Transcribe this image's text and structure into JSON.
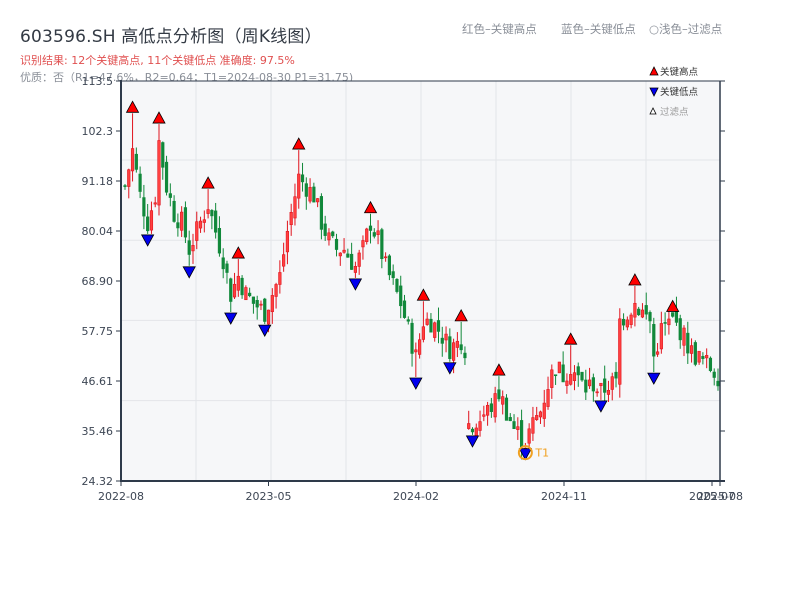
{
  "header": {
    "title": "603596.SH 高低点分析图（周K线图）",
    "result_line": "识别结果: 12个关键高点, 11个关键低点  准确度: 97.5%",
    "quality_line": "优质：否（R1=47.6%，R2=0.64；T1=2024-08-30 P1=31.75)"
  },
  "top_legend": {
    "red": "红色–关键高点",
    "blue": "蓝色–关键低点",
    "light": "○浅色–过滤点"
  },
  "chart_legend": {
    "high": "关键高点",
    "low": "关键低点",
    "filtered": "过滤点"
  },
  "colors": {
    "up": "#e0141e",
    "down": "#11883a",
    "high_marker": "#ff0000",
    "low_marker": "#0000ee",
    "t1_ring": "#f0a020",
    "axis": "#2e3a4a",
    "grid": "#e3e5e9",
    "plot_bg": "#f6f7f9"
  },
  "chart_data": {
    "type": "candlestick",
    "title": "603596.SH 高低点分析图（周K线图）",
    "xlabel": "",
    "ylabel": "",
    "ylim": [
      24.32,
      113.5
    ],
    "y_ticks": [
      "113.5",
      "102.3",
      "91.18",
      "80.04",
      "68.90",
      "57.75",
      "46.61",
      "35.46",
      "24.32"
    ],
    "x_ticks": [
      "2022-08",
      "2023-05",
      "2024-02",
      "2024-11",
      "2025-07",
      "2025-08"
    ],
    "grid": true,
    "legend_position": "upper right",
    "key_highs": [
      {
        "idx": 2,
        "price": 106.3
      },
      {
        "idx": 9,
        "price": 103.9
      },
      {
        "idx": 22,
        "price": 89.4
      },
      {
        "idx": 30,
        "price": 73.8
      },
      {
        "idx": 46,
        "price": 98.1
      },
      {
        "idx": 65,
        "price": 83.9
      },
      {
        "idx": 79,
        "price": 64.4
      },
      {
        "idx": 89,
        "price": 59.8
      },
      {
        "idx": 99,
        "price": 47.7
      },
      {
        "idx": 118,
        "price": 54.6
      },
      {
        "idx": 135,
        "price": 67.8
      },
      {
        "idx": 145,
        "price": 61.9
      }
    ],
    "key_lows": [
      {
        "idx": 6,
        "price": 79.4
      },
      {
        "idx": 17,
        "price": 72.3
      },
      {
        "idx": 28,
        "price": 62.0
      },
      {
        "idx": 37,
        "price": 59.3
      },
      {
        "idx": 61,
        "price": 69.6
      },
      {
        "idx": 77,
        "price": 47.5
      },
      {
        "idx": 86,
        "price": 50.9
      },
      {
        "idx": 92,
        "price": 34.6
      },
      {
        "idx": 106,
        "price": 31.75
      },
      {
        "idx": 126,
        "price": 42.4
      },
      {
        "idx": 140,
        "price": 48.6
      }
    ],
    "t1": {
      "idx": 106,
      "price": 31.75,
      "label": "T1",
      "date": "2024-08-30"
    },
    "close_path": [
      [
        0,
        90
      ],
      [
        2,
        98
      ],
      [
        4,
        88
      ],
      [
        6,
        82
      ],
      [
        8,
        88
      ],
      [
        9,
        100
      ],
      [
        11,
        90
      ],
      [
        13,
        84
      ],
      [
        15,
        82
      ],
      [
        17,
        76
      ],
      [
        19,
        80
      ],
      [
        21,
        84
      ],
      [
        22,
        86
      ],
      [
        24,
        80
      ],
      [
        26,
        74
      ],
      [
        28,
        66
      ],
      [
        30,
        70
      ],
      [
        32,
        66
      ],
      [
        34,
        64
      ],
      [
        37,
        62
      ],
      [
        39,
        66
      ],
      [
        41,
        70
      ],
      [
        43,
        80
      ],
      [
        46,
        92
      ],
      [
        48,
        90
      ],
      [
        50,
        88
      ],
      [
        52,
        82
      ],
      [
        54,
        78
      ],
      [
        56,
        76
      ],
      [
        58,
        76
      ],
      [
        61,
        72
      ],
      [
        63,
        76
      ],
      [
        65,
        82
      ],
      [
        67,
        78
      ],
      [
        69,
        72
      ],
      [
        71,
        68
      ],
      [
        73,
        64
      ],
      [
        75,
        58
      ],
      [
        77,
        52
      ],
      [
        79,
        60
      ],
      [
        81,
        60
      ],
      [
        83,
        58
      ],
      [
        86,
        54
      ],
      [
        88,
        55
      ],
      [
        89,
        56
      ],
      [
        90,
        54
      ],
      [
        91,
        37
      ],
      [
        92,
        36
      ],
      [
        94,
        38
      ],
      [
        96,
        40
      ],
      [
        98,
        42
      ],
      [
        99,
        44
      ],
      [
        101,
        40
      ],
      [
        103,
        36
      ],
      [
        106,
        33
      ],
      [
        108,
        37
      ],
      [
        110,
        40
      ],
      [
        112,
        46
      ],
      [
        114,
        50
      ],
      [
        116,
        48
      ],
      [
        118,
        50
      ],
      [
        120,
        47
      ],
      [
        122,
        45
      ],
      [
        124,
        46
      ],
      [
        126,
        44
      ],
      [
        128,
        46
      ],
      [
        130,
        46
      ],
      [
        131,
        60
      ],
      [
        133,
        62
      ],
      [
        135,
        64
      ],
      [
        137,
        62
      ],
      [
        139,
        60
      ],
      [
        140,
        52
      ],
      [
        142,
        58
      ],
      [
        145,
        60
      ],
      [
        147,
        58
      ],
      [
        150,
        53
      ],
      [
        153,
        51
      ],
      [
        156,
        49
      ],
      [
        157,
        48
      ]
    ],
    "num_candles": 158
  }
}
